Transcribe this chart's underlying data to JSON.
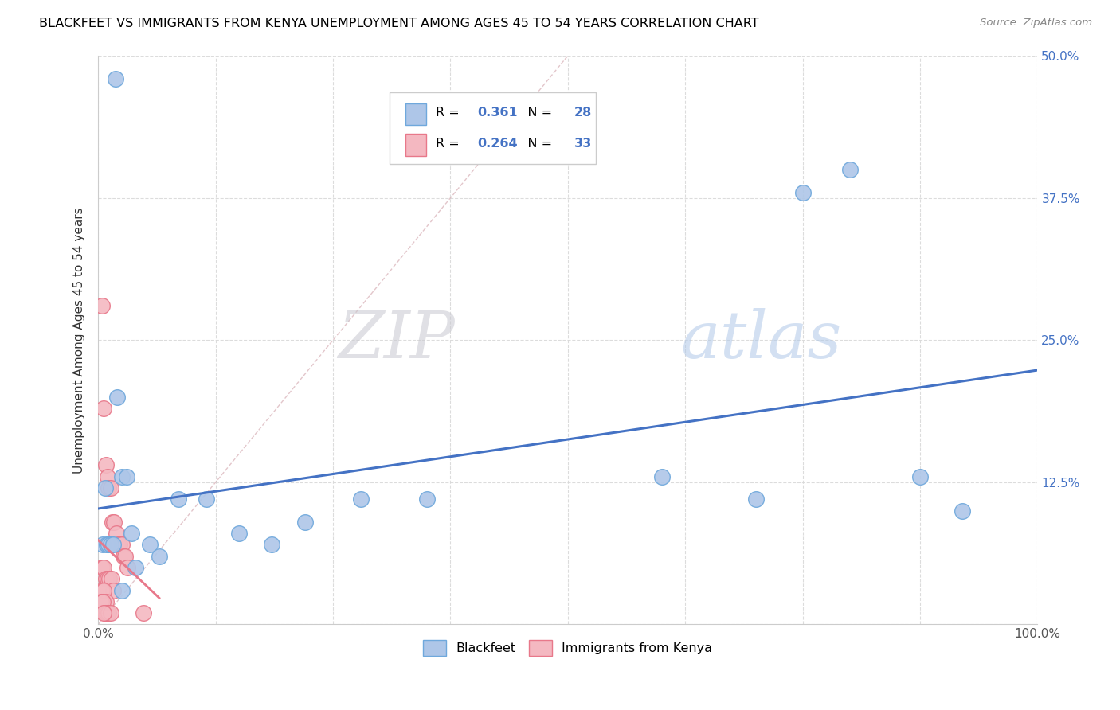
{
  "title": "BLACKFEET VS IMMIGRANTS FROM KENYA UNEMPLOYMENT AMONG AGES 45 TO 54 YEARS CORRELATION CHART",
  "source": "Source: ZipAtlas.com",
  "ylabel": "Unemployment Among Ages 45 to 54 years",
  "xlim": [
    0,
    1.0
  ],
  "ylim": [
    0,
    0.5
  ],
  "xtick_vals": [
    0.0,
    0.125,
    0.25,
    0.375,
    0.5,
    0.625,
    0.75,
    0.875,
    1.0
  ],
  "xticklabels": [
    "0.0%",
    "",
    "",
    "",
    "",
    "",
    "",
    "",
    "100.0%"
  ],
  "ytick_vals": [
    0.0,
    0.125,
    0.25,
    0.375,
    0.5
  ],
  "yticklabels_right": [
    "",
    "12.5%",
    "25.0%",
    "37.5%",
    "50.0%"
  ],
  "blackfeet_x": [
    0.018,
    0.005,
    0.007,
    0.009,
    0.011,
    0.013,
    0.016,
    0.02,
    0.025,
    0.03,
    0.035,
    0.04,
    0.055,
    0.065,
    0.085,
    0.115,
    0.15,
    0.185,
    0.22,
    0.28,
    0.35,
    0.6,
    0.7,
    0.75,
    0.8,
    0.875,
    0.92,
    0.025
  ],
  "blackfeet_y": [
    0.48,
    0.07,
    0.12,
    0.07,
    0.07,
    0.07,
    0.07,
    0.2,
    0.13,
    0.13,
    0.08,
    0.05,
    0.07,
    0.06,
    0.11,
    0.11,
    0.08,
    0.07,
    0.09,
    0.11,
    0.11,
    0.13,
    0.11,
    0.38,
    0.4,
    0.13,
    0.1,
    0.03
  ],
  "kenya_x": [
    0.004,
    0.006,
    0.008,
    0.01,
    0.011,
    0.013,
    0.015,
    0.017,
    0.019,
    0.021,
    0.023,
    0.025,
    0.027,
    0.029,
    0.031,
    0.004,
    0.006,
    0.008,
    0.01,
    0.012,
    0.014,
    0.016,
    0.004,
    0.006,
    0.008,
    0.003,
    0.005,
    0.007,
    0.009,
    0.011,
    0.013,
    0.048,
    0.006
  ],
  "kenya_y": [
    0.28,
    0.19,
    0.14,
    0.13,
    0.12,
    0.12,
    0.09,
    0.09,
    0.08,
    0.07,
    0.07,
    0.07,
    0.06,
    0.06,
    0.05,
    0.05,
    0.05,
    0.04,
    0.04,
    0.04,
    0.04,
    0.03,
    0.03,
    0.03,
    0.02,
    0.02,
    0.02,
    0.01,
    0.01,
    0.01,
    0.01,
    0.01,
    0.01
  ],
  "blackfeet_color": "#aec6e8",
  "kenya_color": "#f4b8c1",
  "blackfeet_edge": "#6fa8dc",
  "kenya_edge": "#e8788a",
  "trend_blackfeet_color": "#4472c4",
  "trend_kenya_color": "#e8788a",
  "diagonal_color": "#d0d0d0",
  "R_blackfeet": "0.361",
  "N_blackfeet": "28",
  "R_kenya": "0.264",
  "N_kenya": "33",
  "legend_blackfeet": "Blackfeet",
  "legend_kenya": "Immigrants from Kenya",
  "grid_color": "#d9d9d9",
  "value_color": "#4472c4"
}
